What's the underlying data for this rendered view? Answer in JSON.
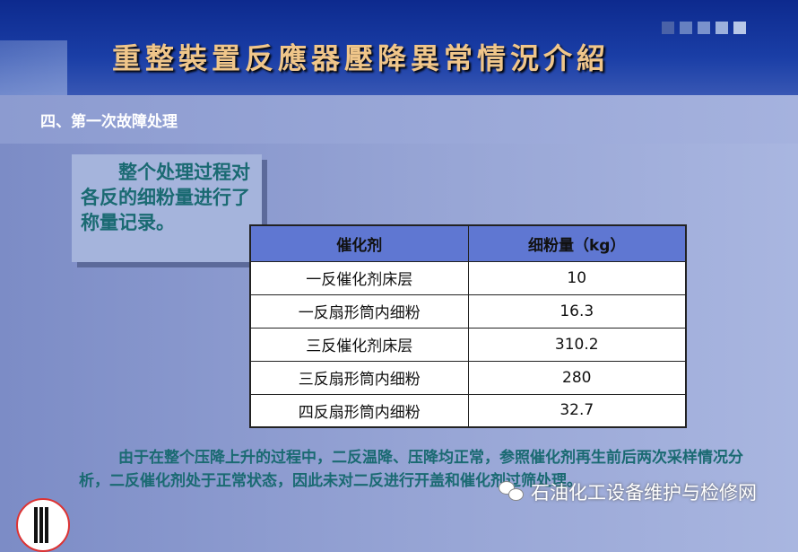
{
  "header": {
    "title": "重整裝置反應器壓降異常情況介紹",
    "squares": [
      "#4a62a8",
      "#6680c0",
      "#7a92cc",
      "#9cb0dc",
      "#b8c8e8"
    ]
  },
  "section": {
    "title": "四、第一次故障处理"
  },
  "callout": {
    "text": "整个处理过程对各反的细粉量进行了称量记录。"
  },
  "table": {
    "headers": [
      "催化剂",
      "细粉量（kg）"
    ],
    "rows": [
      [
        "一反催化剂床层",
        "10"
      ],
      [
        "一反扇形筒内细粉",
        "16.3"
      ],
      [
        "三反催化剂床层",
        "310.2"
      ],
      [
        "三反扇形筒内细粉",
        "280"
      ],
      [
        "四反扇形筒内细粉",
        "32.7"
      ]
    ]
  },
  "summary": {
    "text": "由于在整个压降上升的过程中，二反温降、压降均正常，参照催化剂再生前后两次采样情况分析，二反催化剂处于正常状态，因此未对二反进行开盖和催化剂过筛处理。"
  },
  "watermark": {
    "icon": "wechat-icon",
    "text": "石油化工设备维护与检修网"
  },
  "colors": {
    "text": "#1a6a72",
    "table_header": "#5f77d2",
    "title": "#f0c68a"
  }
}
